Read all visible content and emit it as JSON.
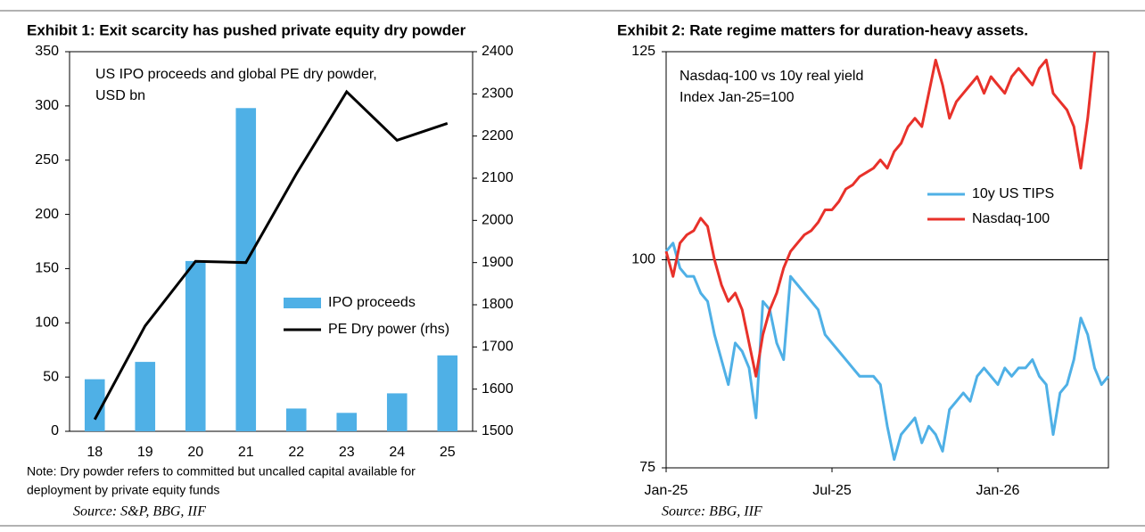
{
  "chart_data": [
    {
      "type": "bar",
      "title": "Exhibit 1: Exit scarcity has pushed private equity dry powder",
      "annotation": [
        "US IPO proceeds and global PE dry powder,",
        "USD bn"
      ],
      "note": [
        "Note: Dry powder refers to committed but uncalled capital available for",
        "deployment by private equity funds"
      ],
      "source": "Source: S&P, BBG, IIF",
      "categories": [
        "18",
        "19",
        "20",
        "21",
        "22",
        "23",
        "24",
        "25"
      ],
      "series": [
        {
          "name": "IPO proceeds",
          "type": "bar",
          "color": "#4fb0e6",
          "values": [
            48,
            64,
            157,
            298,
            21,
            17,
            35,
            70
          ]
        },
        {
          "name": "PE Dry power (rhs)",
          "type": "line",
          "axis": "y2",
          "color": "#000000",
          "values": [
            1528,
            1750,
            1903,
            1900,
            2110,
            2305,
            2190,
            2230
          ]
        }
      ],
      "ylim": [
        0,
        350
      ],
      "yticks": [
        0,
        50,
        100,
        150,
        200,
        250,
        300,
        350
      ],
      "y2lim": [
        1500,
        2400
      ],
      "y2ticks": [
        1500,
        1600,
        1700,
        1800,
        1900,
        2000,
        2100,
        2200,
        2300,
        2400
      ],
      "legend": "center-right"
    },
    {
      "type": "line",
      "title": "Exhibit 2: Rate regime matters for duration-heavy assets.",
      "annotation": [
        "Nasdaq-100 vs 10y real yield",
        "Index Jan-25=100"
      ],
      "source": "Source: BBG, IIF",
      "x": [
        0,
        0.25,
        0.5,
        0.75,
        1,
        1.25,
        1.5,
        1.75,
        2,
        2.25,
        2.5,
        2.75,
        3,
        3.25,
        3.5,
        3.75,
        4,
        4.25,
        4.5,
        4.75,
        5,
        5.25,
        5.5,
        5.75,
        6,
        6.25,
        6.5,
        6.75,
        7,
        7.25,
        7.5,
        7.75,
        8,
        8.25,
        8.5,
        8.75,
        9,
        9.25,
        9.5,
        9.75,
        10,
        10.25,
        10.5,
        10.75,
        11,
        11.25,
        11.5,
        11.75,
        12,
        12.25,
        12.5,
        12.75,
        13,
        13.25,
        13.5,
        13.75,
        14,
        14.25,
        14.5,
        14.75,
        15,
        15.25,
        15.5,
        15.75,
        16
      ],
      "series": [
        {
          "name": "10y US TIPS",
          "color": "#4fb0e6",
          "values": [
            101,
            102,
            99,
            98,
            98,
            96,
            95,
            91,
            88,
            85,
            90,
            89,
            87,
            81,
            95,
            94,
            90,
            88,
            98,
            97,
            96,
            95,
            94,
            91,
            90,
            89,
            88,
            87,
            86,
            86,
            86,
            85,
            80,
            76,
            79,
            80,
            81,
            78,
            80,
            79,
            77,
            82,
            83,
            84,
            83,
            86,
            87,
            86,
            85,
            87,
            86,
            87,
            87,
            88,
            86,
            85,
            79,
            84,
            85,
            88,
            93,
            91,
            87,
            85,
            86
          ]
        },
        {
          "name": "Nasdaq-100",
          "color": "#e8312a",
          "values": [
            101,
            98,
            102,
            103,
            103.5,
            105,
            104,
            100,
            97,
            95,
            96,
            94,
            90,
            86,
            91,
            94,
            96,
            99,
            101,
            102,
            103,
            103.5,
            104.5,
            106,
            106,
            107,
            108.5,
            109,
            110,
            110.5,
            111,
            112,
            111,
            113,
            114,
            116,
            117,
            116,
            120,
            124,
            121,
            117,
            119,
            120,
            121,
            122,
            120,
            122,
            121,
            120,
            122,
            123,
            122,
            121,
            123,
            124,
            120,
            119,
            118,
            116,
            111,
            117,
            125,
            null,
            null
          ]
        }
      ],
      "xlim": [
        0,
        16
      ],
      "xticks": [
        {
          "value": 0,
          "label": "Jan-25"
        },
        {
          "value": 6,
          "label": "Jul-25"
        },
        {
          "value": 12,
          "label": "Jan-26"
        }
      ],
      "ylim": [
        75,
        125
      ],
      "yticks": [
        75,
        100,
        125
      ],
      "reference_line": 100,
      "legend": "center-right"
    }
  ]
}
